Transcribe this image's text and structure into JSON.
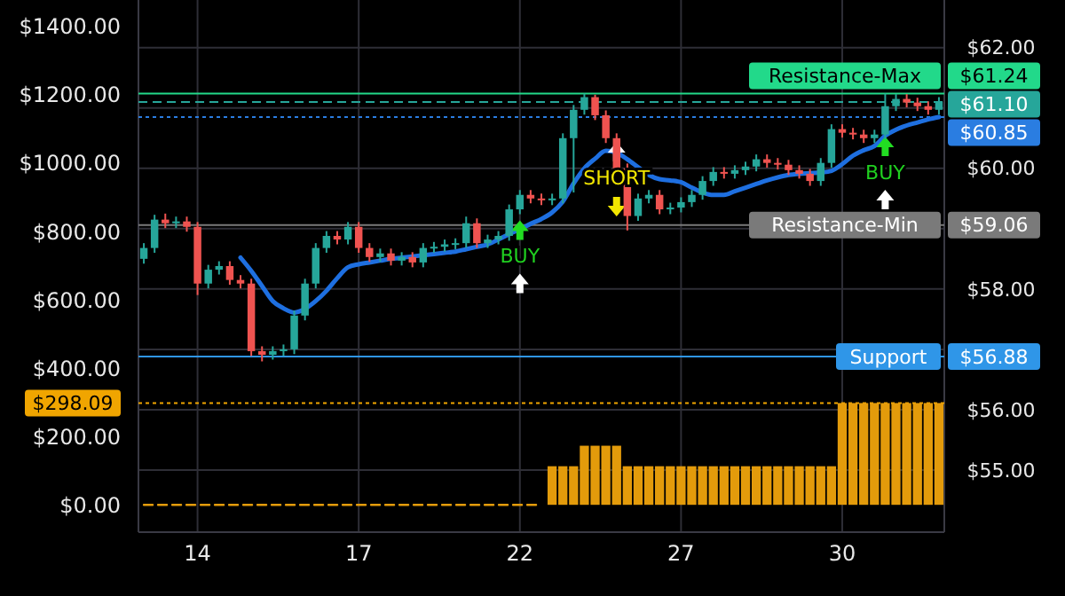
{
  "chart_data": {
    "type": "candlestick",
    "categories": [
      null,
      null,
      null,
      null,
      null,
      "14",
      null,
      null,
      null,
      null,
      null,
      null,
      null,
      null,
      null,
      null,
      null,
      null,
      null,
      null,
      "17",
      null,
      null,
      null,
      null,
      null,
      null,
      null,
      null,
      null,
      null,
      null,
      null,
      null,
      null,
      "22",
      null,
      null,
      null,
      null,
      null,
      null,
      null,
      null,
      null,
      null,
      null,
      null,
      null,
      null,
      "27",
      null,
      null,
      null,
      null,
      null,
      null,
      null,
      null,
      null,
      null,
      null,
      null,
      null,
      null,
      "30",
      null,
      null,
      null,
      null,
      null,
      null,
      null,
      null,
      null
    ],
    "ylim": [
      -80,
      1478
    ],
    "yticks": [
      {
        "value": 0,
        "label": "$0.00"
      },
      {
        "value": 200,
        "label": "$200.00"
      },
      {
        "value": 400,
        "label": "$400.00"
      },
      {
        "value": 600,
        "label": "$600.00"
      },
      {
        "value": 800,
        "label": "$800.00"
      },
      {
        "value": 1000,
        "label": "$1000.00"
      },
      {
        "value": 1200,
        "label": "$1200.00"
      },
      {
        "value": 1400,
        "label": "$1400.00"
      }
    ],
    "y2lim": [
      53.97,
      62.79
    ],
    "y2ticks": [
      {
        "value": 55,
        "label": "$55.00"
      },
      {
        "value": 56,
        "label": "$56.00"
      },
      {
        "value": 57,
        "label": null
      },
      {
        "value": 58,
        "label": "$58.00"
      },
      {
        "value": 59,
        "label": null
      },
      {
        "value": 60,
        "label": "$60.00"
      },
      {
        "value": 61,
        "label": null
      },
      {
        "value": 62,
        "label": "$62.00"
      }
    ],
    "grid": true,
    "series": [
      {
        "axis": "y2",
        "ohlc": [
          [
            58.5,
            58.76,
            58.42,
            58.68
          ],
          [
            58.68,
            59.23,
            58.6,
            59.15
          ],
          [
            59.15,
            59.25,
            59.01,
            59.09
          ],
          [
            59.09,
            59.2,
            59.01,
            59.12
          ],
          [
            59.12,
            59.2,
            58.95,
            59.03
          ],
          [
            59.03,
            59.11,
            57.9,
            58.09
          ],
          [
            58.09,
            58.4,
            58.01,
            58.32
          ],
          [
            58.32,
            58.46,
            58.24,
            58.38
          ],
          [
            58.38,
            58.46,
            58.07,
            58.15
          ],
          [
            58.15,
            58.23,
            58.01,
            58.09
          ],
          [
            58.09,
            58.17,
            56.89,
            56.97
          ],
          [
            56.97,
            57.05,
            56.8,
            56.91
          ],
          [
            56.91,
            57.05,
            56.83,
            56.97
          ],
          [
            56.97,
            57.08,
            56.89,
            57.0
          ],
          [
            57.0,
            57.64,
            56.92,
            57.56
          ],
          [
            57.56,
            58.17,
            57.48,
            58.09
          ],
          [
            58.09,
            58.76,
            58.01,
            58.68
          ],
          [
            58.68,
            58.96,
            58.6,
            58.88
          ],
          [
            58.88,
            58.96,
            58.74,
            58.82
          ],
          [
            58.82,
            59.11,
            58.74,
            59.03
          ],
          [
            59.03,
            59.11,
            58.6,
            58.68
          ],
          [
            58.68,
            58.76,
            58.45,
            58.53
          ],
          [
            58.53,
            58.67,
            58.45,
            58.59
          ],
          [
            58.59,
            58.67,
            58.39,
            58.47
          ],
          [
            58.47,
            58.61,
            58.39,
            58.53
          ],
          [
            58.53,
            58.61,
            58.36,
            58.44
          ],
          [
            58.44,
            58.76,
            58.36,
            58.68
          ],
          [
            58.68,
            58.78,
            58.6,
            58.7
          ],
          [
            58.7,
            58.82,
            58.62,
            58.74
          ],
          [
            58.74,
            58.84,
            58.66,
            58.76
          ],
          [
            58.76,
            59.2,
            58.68,
            59.09
          ],
          [
            59.09,
            59.17,
            58.68,
            58.76
          ],
          [
            58.76,
            58.9,
            58.68,
            58.82
          ],
          [
            58.82,
            58.96,
            58.74,
            58.88
          ],
          [
            58.88,
            59.4,
            58.8,
            59.32
          ],
          [
            59.32,
            59.64,
            59.24,
            59.56
          ],
          [
            59.56,
            59.64,
            59.42,
            59.5
          ],
          [
            59.5,
            59.58,
            59.39,
            59.47
          ],
          [
            59.47,
            59.58,
            59.39,
            59.5
          ],
          [
            59.5,
            60.58,
            59.42,
            60.5
          ],
          [
            60.5,
            61.05,
            59.6,
            60.97
          ],
          [
            60.97,
            61.24,
            60.89,
            61.18
          ],
          [
            61.18,
            61.22,
            60.8,
            60.88
          ],
          [
            60.88,
            60.96,
            60.42,
            60.5
          ],
          [
            60.5,
            60.58,
            59.92,
            60.0
          ],
          [
            60.0,
            60.08,
            58.97,
            59.21
          ],
          [
            59.21,
            59.58,
            59.13,
            59.5
          ],
          [
            59.5,
            59.64,
            59.42,
            59.56
          ],
          [
            59.56,
            59.64,
            59.24,
            59.32
          ],
          [
            59.32,
            59.43,
            59.24,
            59.35
          ],
          [
            59.35,
            59.52,
            59.27,
            59.44
          ],
          [
            59.44,
            59.64,
            59.36,
            59.56
          ],
          [
            59.56,
            59.87,
            59.48,
            59.79
          ],
          [
            59.79,
            60.02,
            59.71,
            59.94
          ],
          [
            59.94,
            60.02,
            59.83,
            59.91
          ],
          [
            59.91,
            60.05,
            59.83,
            59.97
          ],
          [
            59.97,
            60.11,
            59.89,
            60.03
          ],
          [
            60.03,
            60.23,
            59.95,
            60.15
          ],
          [
            60.15,
            60.23,
            60.01,
            60.09
          ],
          [
            60.09,
            60.17,
            59.98,
            60.06
          ],
          [
            60.06,
            60.14,
            59.89,
            59.97
          ],
          [
            59.97,
            60.05,
            59.83,
            59.91
          ],
          [
            59.91,
            59.99,
            59.71,
            59.79
          ],
          [
            59.79,
            60.17,
            59.71,
            60.09
          ],
          [
            60.09,
            60.73,
            60.01,
            60.65
          ],
          [
            60.65,
            60.73,
            60.51,
            60.59
          ],
          [
            60.59,
            60.67,
            60.48,
            60.56
          ],
          [
            60.56,
            60.64,
            60.42,
            60.5
          ],
          [
            60.5,
            60.64,
            60.42,
            60.56
          ],
          [
            60.56,
            61.24,
            60.48,
            61.03
          ],
          [
            61.03,
            61.23,
            60.95,
            61.15
          ],
          [
            61.15,
            61.23,
            61.01,
            61.09
          ],
          [
            61.09,
            61.17,
            60.95,
            61.03
          ],
          [
            61.03,
            61.11,
            60.89,
            60.97
          ],
          [
            60.97,
            61.18,
            60.89,
            61.1
          ]
        ],
        "colors": [
          "#26a69a",
          "#26a69a",
          "#ef5350",
          "#26a69a",
          "#ef5350",
          "#ef5350",
          "#26a69a",
          "#26a69a",
          "#ef5350",
          "#ef5350",
          "#ef5350",
          "#ef5350",
          "#26a69a",
          "#26a69a",
          "#26a69a",
          "#26a69a",
          "#26a69a",
          "#26a69a",
          "#ef5350",
          "#26a69a",
          "#ef5350",
          "#ef5350",
          "#26a69a",
          "#ef5350",
          "#26a69a",
          "#ef5350",
          "#26a69a",
          "#26a69a",
          "#26a69a",
          "#26a69a",
          "#26a69a",
          "#ef5350",
          "#26a69a",
          "#26a69a",
          "#26a69a",
          "#26a69a",
          "#ef5350",
          "#ef5350",
          "#26a69a",
          "#26a69a",
          "#26a69a",
          "#26a69a",
          "#ef5350",
          "#ef5350",
          "#ef5350",
          "#ef5350",
          "#26a69a",
          "#26a69a",
          "#ef5350",
          "#26a69a",
          "#26a69a",
          "#26a69a",
          "#26a69a",
          "#26a69a",
          "#ef5350",
          "#26a69a",
          "#26a69a",
          "#26a69a",
          "#ef5350",
          "#ef5350",
          "#ef5350",
          "#ef5350",
          "#ef5350",
          "#26a69a",
          "#26a69a",
          "#ef5350",
          "#ef5350",
          "#ef5350",
          "#26a69a",
          "#26a69a",
          "#26a69a",
          "#ef5350",
          "#ef5350",
          "#ef5350",
          "#26a69a"
        ]
      },
      {
        "type": "line",
        "axis": "y2",
        "color": "#1e6fe0",
        "values": [
          null,
          null,
          null,
          null,
          null,
          null,
          null,
          null,
          null,
          58.52,
          58.3,
          58.05,
          57.8,
          57.68,
          57.61,
          57.67,
          57.8,
          57.97,
          58.18,
          58.36,
          58.41,
          58.44,
          58.47,
          58.5,
          58.52,
          58.54,
          58.56,
          58.58,
          58.6,
          58.62,
          58.66,
          58.7,
          58.74,
          58.82,
          58.91,
          58.99,
          59.08,
          59.16,
          59.27,
          59.45,
          59.75,
          60.0,
          60.16,
          60.29,
          60.26,
          60.15,
          60.02,
          59.89,
          59.82,
          59.8,
          59.77,
          59.68,
          59.6,
          59.56,
          59.56,
          59.62,
          59.68,
          59.74,
          59.8,
          59.85,
          59.89,
          59.91,
          59.92,
          59.93,
          59.96,
          60.07,
          60.21,
          60.3,
          60.37,
          60.54,
          60.64,
          60.71,
          60.76,
          60.81,
          60.85
        ]
      },
      {
        "type": "bar",
        "axis": "y",
        "color": "#e39b0b",
        "values": [
          null,
          null,
          null,
          null,
          null,
          null,
          null,
          null,
          null,
          null,
          null,
          null,
          null,
          null,
          null,
          null,
          null,
          null,
          null,
          null,
          null,
          null,
          null,
          null,
          null,
          null,
          null,
          null,
          null,
          null,
          null,
          null,
          null,
          null,
          null,
          null,
          null,
          null,
          113,
          113,
          113,
          173,
          173,
          173,
          173,
          113,
          113,
          113,
          113,
          113,
          113,
          113,
          113,
          113,
          113,
          113,
          113,
          113,
          113,
          113,
          113,
          113,
          113,
          113,
          113,
          298,
          298,
          298,
          298,
          298,
          298,
          298,
          298,
          298,
          298
        ]
      },
      {
        "type": "line",
        "axis": "y",
        "color": "#e39b0b",
        "line_style": "dashed",
        "values": [
          0,
          0,
          0,
          0,
          0,
          0,
          0,
          0,
          0,
          0,
          0,
          0,
          0,
          0,
          0,
          0,
          0,
          0,
          0,
          0,
          0,
          0,
          0,
          0,
          0,
          0,
          0,
          0,
          0,
          0,
          0,
          0,
          0,
          0,
          0,
          0,
          0,
          0,
          null,
          null,
          null,
          null,
          null,
          null,
          null,
          null,
          null,
          null,
          null,
          null,
          null,
          null,
          null,
          null,
          null,
          null,
          null,
          null,
          null,
          null,
          null,
          null,
          null,
          null,
          null,
          null,
          null,
          null,
          null,
          null,
          null,
          null,
          null,
          null,
          null
        ]
      }
    ],
    "ref_lines": [
      {
        "axis": "y2",
        "value": 61.24,
        "label": "$61.24",
        "color": "#22d98a",
        "line_style": "solid"
      },
      {
        "axis": "y2",
        "value": 61.1,
        "label": "$61.10",
        "color": "#26a69a",
        "line_style": "dashed"
      },
      {
        "axis": "y2",
        "value": 60.85,
        "label": "$60.85",
        "color": "#2a7de1",
        "line_style": "dotted"
      },
      {
        "axis": "y2",
        "value": 59.06,
        "label": "$59.06",
        "color": "#7a7a7a",
        "line_style": "solid"
      },
      {
        "axis": "y2",
        "value": 56.88,
        "label": "$56.88",
        "color": "#2f96e8",
        "line_style": "solid"
      },
      {
        "axis": "y",
        "value": 298.09,
        "label": "$298.09",
        "color": "#f0a500",
        "line_style": "dotted"
      }
    ],
    "annotations": [
      "BUY",
      "SHORT",
      "BUY",
      "Resistance-Max",
      "Resistance-Min",
      "Support"
    ]
  }
}
